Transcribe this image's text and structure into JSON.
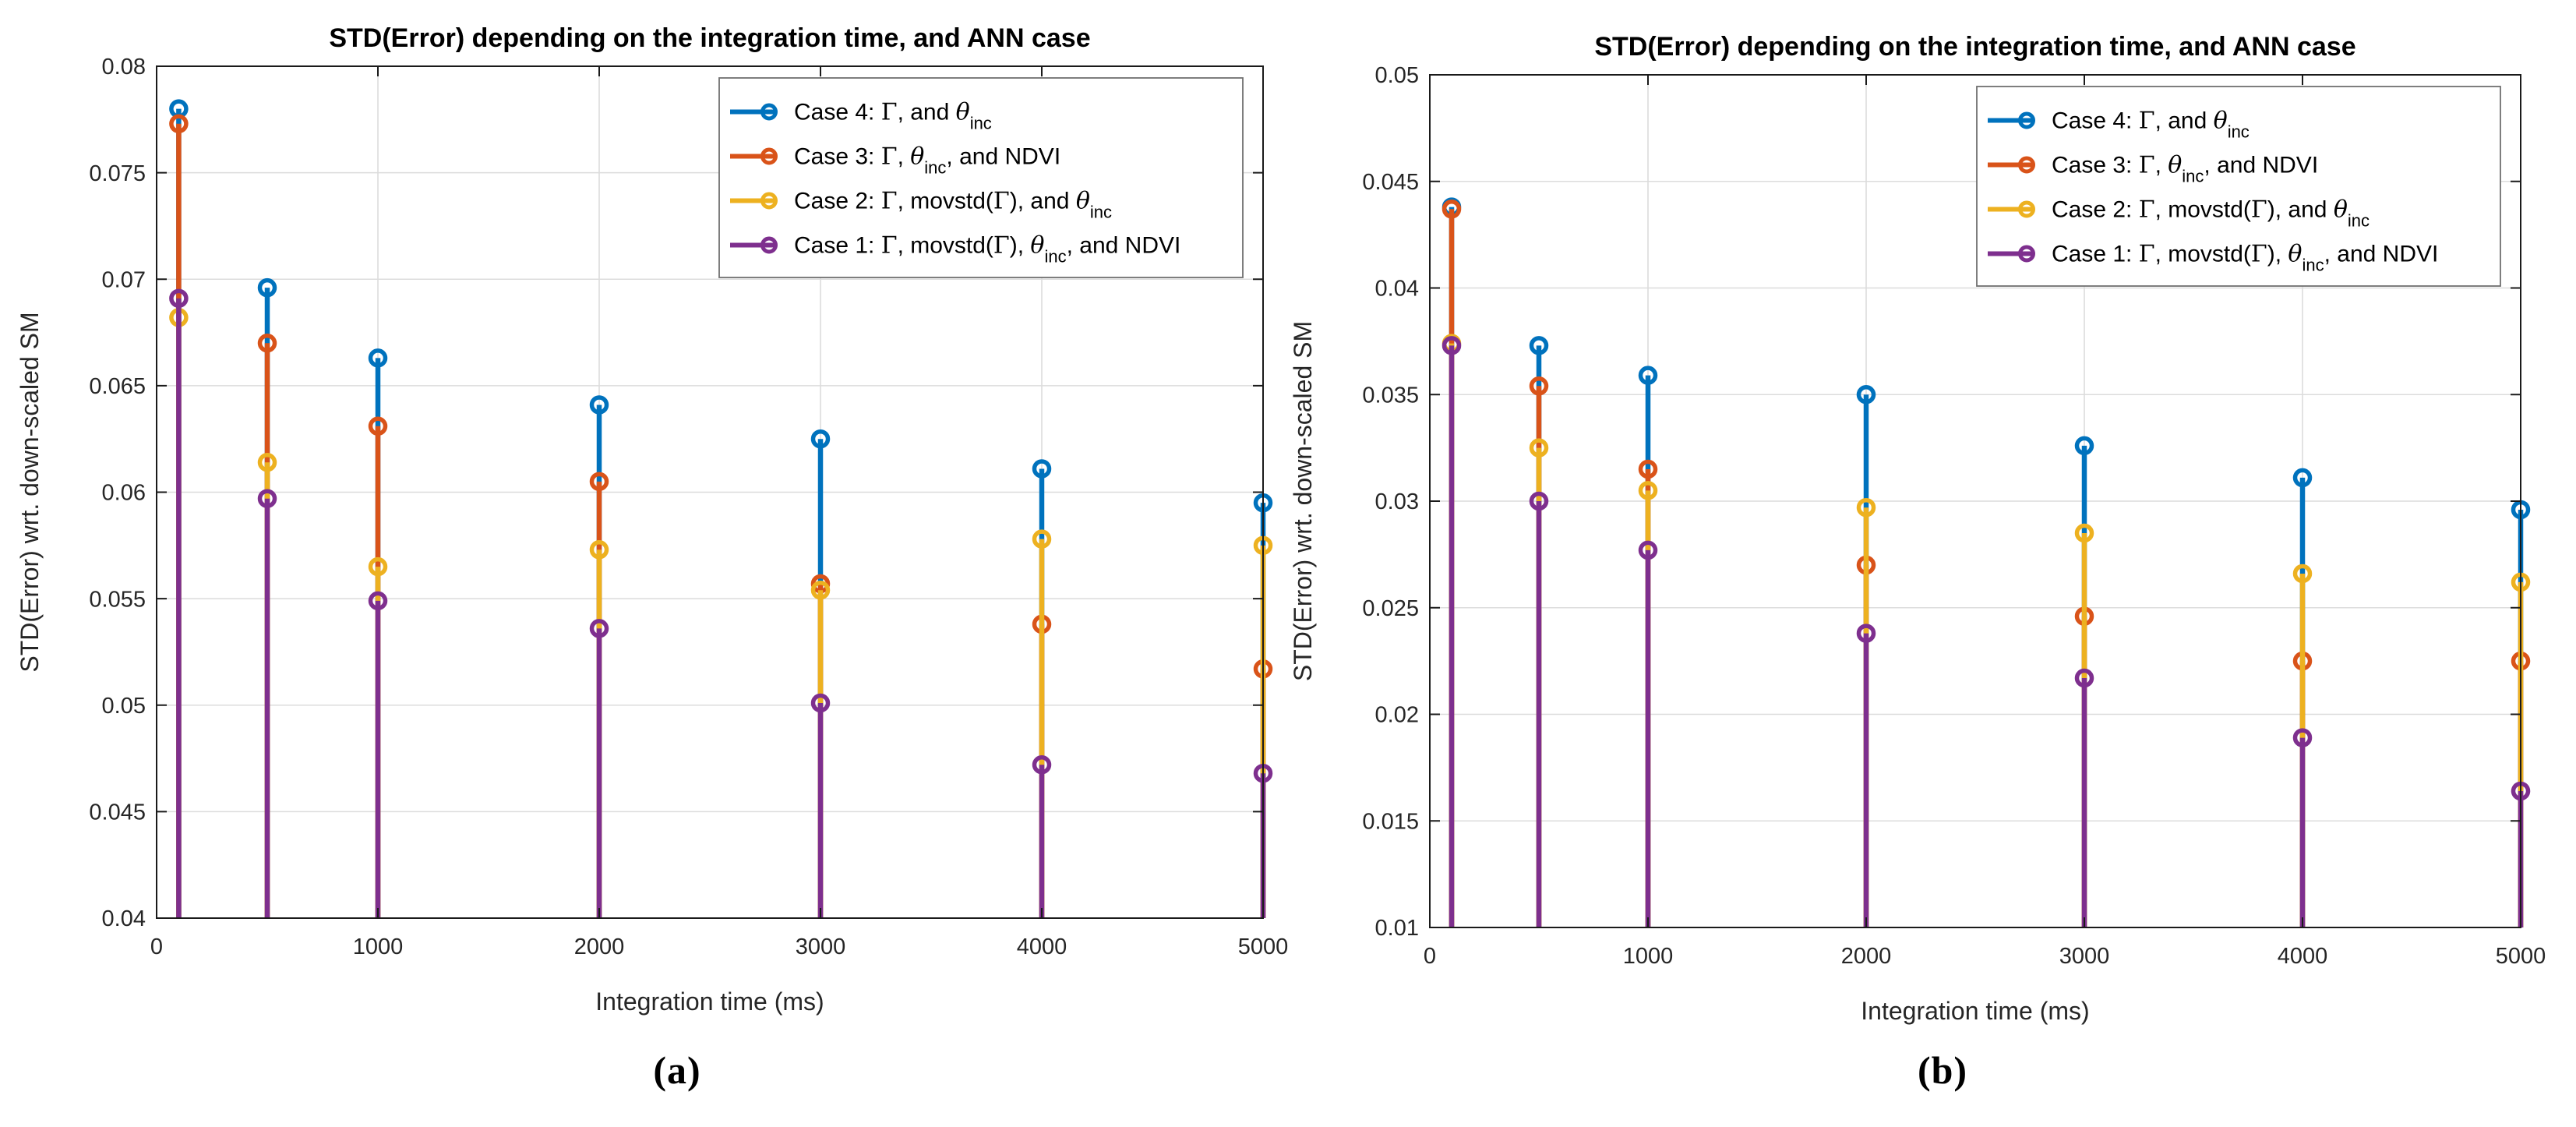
{
  "figure": {
    "background": "#ffffff"
  },
  "colors": {
    "case4": "#0072BD",
    "case3": "#D95319",
    "case2": "#EDB120",
    "case1": "#7E2F8E",
    "grid": "#DCDCDC",
    "axis": "#1a1a1a",
    "tick_text": "#262626",
    "legend_border": "#707070",
    "legend_bg": "#ffffff"
  },
  "panels": [
    {
      "id": "a",
      "caption": "(a)",
      "chart_data": {
        "type": "stem",
        "title": "STD(Error) depending on the integration time, and ANN case",
        "xlabel": "Integration time (ms)",
        "ylabel": "STD(Error) wrt. down-scaled SM",
        "x": [
          100,
          500,
          1000,
          2000,
          3000,
          4000,
          5000
        ],
        "xlim": [
          0,
          5000
        ],
        "ylim": [
          0.04,
          0.08
        ],
        "xticks": [
          0,
          1000,
          2000,
          3000,
          4000,
          5000
        ],
        "xtick_labels": [
          "0",
          "1000",
          "2000",
          "3000",
          "4000",
          "5000"
        ],
        "yticks": [
          0.04,
          0.045,
          0.05,
          0.055,
          0.06,
          0.065,
          0.07,
          0.075,
          0.08
        ],
        "ytick_labels": [
          "0.04",
          "0.045",
          "0.05",
          "0.055",
          "0.06",
          "0.065",
          "0.07",
          "0.075",
          "0.08"
        ],
        "grid": true,
        "legend_position": "top-right",
        "series": [
          {
            "key": "case4",
            "name": "Case 4: Γ, and θ_inc",
            "values": [
              0.078,
              0.0696,
              0.0663,
              0.0641,
              0.0625,
              0.0611,
              0.0595
            ]
          },
          {
            "key": "case3",
            "name": "Case 3: Γ, θ_inc, and NDVI",
            "values": [
              0.0773,
              0.067,
              0.0631,
              0.0605,
              0.0557,
              0.0538,
              0.0517
            ]
          },
          {
            "key": "case2",
            "name": "Case 2: Γ, movstd(Γ), and θ_inc",
            "values": [
              0.0682,
              0.0614,
              0.0565,
              0.0573,
              0.0554,
              0.0578,
              0.0575
            ]
          },
          {
            "key": "case1",
            "name": "Case 1: Γ, movstd(Γ), θ_inc, and NDVI",
            "values": [
              0.0691,
              0.0597,
              0.0549,
              0.0536,
              0.0501,
              0.0472,
              0.0468
            ]
          }
        ]
      }
    },
    {
      "id": "b",
      "caption": "(b)",
      "chart_data": {
        "type": "stem",
        "title": "STD(Error) depending on the integration time, and ANN case",
        "xlabel": "Integration time (ms)",
        "ylabel": "STD(Error) wrt. down-scaled SM",
        "x": [
          100,
          500,
          1000,
          2000,
          3000,
          4000,
          5000
        ],
        "xlim": [
          0,
          5000
        ],
        "ylim": [
          0.01,
          0.05
        ],
        "xticks": [
          0,
          1000,
          2000,
          3000,
          4000,
          5000
        ],
        "xtick_labels": [
          "0",
          "1000",
          "2000",
          "3000",
          "4000",
          "5000"
        ],
        "yticks": [
          0.01,
          0.015,
          0.02,
          0.025,
          0.03,
          0.035,
          0.04,
          0.045,
          0.05
        ],
        "ytick_labels": [
          "0.01",
          "0.015",
          "0.02",
          "0.025",
          "0.03",
          "0.035",
          "0.04",
          "0.045",
          "0.05"
        ],
        "grid": true,
        "legend_position": "top-right",
        "series": [
          {
            "key": "case4",
            "name": "Case 4: Γ, and θ_inc",
            "values": [
              0.0438,
              0.0373,
              0.0359,
              0.035,
              0.0326,
              0.0311,
              0.0296
            ]
          },
          {
            "key": "case3",
            "name": "Case 3: Γ, θ_inc, and NDVI",
            "values": [
              0.0437,
              0.0354,
              0.0315,
              0.027,
              0.0246,
              0.0225,
              0.0225
            ]
          },
          {
            "key": "case2",
            "name": "Case 2: Γ, movstd(Γ), and θ_inc",
            "values": [
              0.0374,
              0.0325,
              0.0305,
              0.0297,
              0.0285,
              0.0266,
              0.0262
            ]
          },
          {
            "key": "case1",
            "name": "Case 1: Γ, movstd(Γ), θ_inc, and NDVI",
            "values": [
              0.0373,
              0.03,
              0.0277,
              0.0238,
              0.0217,
              0.0189,
              0.0164
            ]
          }
        ]
      }
    }
  ],
  "legend_labels": [
    {
      "key": "case4",
      "segments": [
        {
          "t": "Case 4: "
        },
        {
          "t": "Γ",
          "serif": true
        },
        {
          "t": ", and "
        },
        {
          "t": "θ",
          "serif": true,
          "italic": true
        },
        {
          "t": "inc",
          "sub": true
        }
      ]
    },
    {
      "key": "case3",
      "segments": [
        {
          "t": "Case 3: "
        },
        {
          "t": "Γ",
          "serif": true
        },
        {
          "t": ", "
        },
        {
          "t": "θ",
          "serif": true,
          "italic": true
        },
        {
          "t": "inc",
          "sub": true
        },
        {
          "t": ", and NDVI"
        }
      ]
    },
    {
      "key": "case2",
      "segments": [
        {
          "t": "Case 2: "
        },
        {
          "t": "Γ",
          "serif": true
        },
        {
          "t": ", movstd("
        },
        {
          "t": "Γ",
          "serif": true
        },
        {
          "t": "), and "
        },
        {
          "t": "θ",
          "serif": true,
          "italic": true
        },
        {
          "t": "inc",
          "sub": true
        }
      ]
    },
    {
      "key": "case1",
      "segments": [
        {
          "t": "Case 1: "
        },
        {
          "t": "Γ",
          "serif": true
        },
        {
          "t": ", movstd("
        },
        {
          "t": "Γ",
          "serif": true
        },
        {
          "t": "), "
        },
        {
          "t": "θ",
          "serif": true,
          "italic": true
        },
        {
          "t": "inc",
          "sub": true
        },
        {
          "t": ", and NDVI"
        }
      ]
    }
  ]
}
